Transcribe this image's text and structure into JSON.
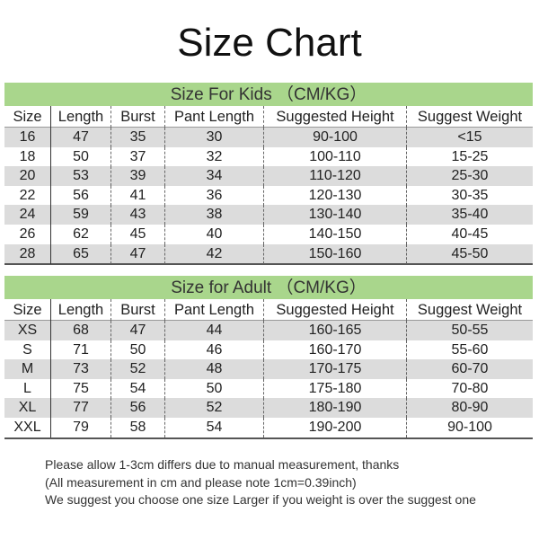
{
  "title": "Size Chart",
  "columns": [
    "Size",
    "Length",
    "Burst",
    "Pant Length",
    "Suggested Height",
    "Suggest Weight"
  ],
  "kids": {
    "heading": "Size For Kids （CM/KG）",
    "rows": [
      [
        "16",
        "47",
        "35",
        "30",
        "90-100",
        "<15"
      ],
      [
        "18",
        "50",
        "37",
        "32",
        "100-110",
        "15-25"
      ],
      [
        "20",
        "53",
        "39",
        "34",
        "110-120",
        "25-30"
      ],
      [
        "22",
        "56",
        "41",
        "36",
        "120-130",
        "30-35"
      ],
      [
        "24",
        "59",
        "43",
        "38",
        "130-140",
        "35-40"
      ],
      [
        "26",
        "62",
        "45",
        "40",
        "140-150",
        "40-45"
      ],
      [
        "28",
        "65",
        "47",
        "42",
        "150-160",
        "45-50"
      ]
    ]
  },
  "adult": {
    "heading": "Size for Adult （CM/KG）",
    "rows": [
      [
        "XS",
        "68",
        "47",
        "44",
        "160-165",
        "50-55"
      ],
      [
        "S",
        "71",
        "50",
        "46",
        "160-170",
        "55-60"
      ],
      [
        "M",
        "73",
        "52",
        "48",
        "170-175",
        "60-70"
      ],
      [
        "L",
        "75",
        "54",
        "50",
        "175-180",
        "70-80"
      ],
      [
        "XL",
        "77",
        "56",
        "52",
        "180-190",
        "80-90"
      ],
      [
        "XXL",
        "79",
        "58",
        "54",
        "190-200",
        "90-100"
      ]
    ]
  },
  "notes": [
    "Please allow 1-3cm differs due to manual measurement, thanks",
    "(All measurement in cm and please note 1cm=0.39inch)",
    "We suggest you choose one size Larger if you weight is over the suggest one"
  ],
  "colors": {
    "band": "#a9d68c",
    "stripe": "#dcdcdc"
  }
}
